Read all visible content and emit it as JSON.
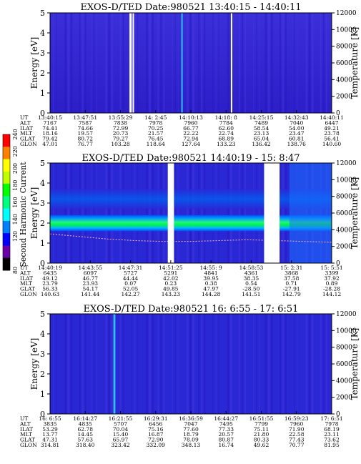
{
  "chart_data": [
    {
      "type": "heatmap",
      "title": "EXOS-D/TED   Date:980521   13:40:15 - 14:40:11",
      "ylabel": "Energy [eV]",
      "y2label": "Temperature [K]",
      "ylim": [
        0,
        5
      ],
      "yticks": [
        0,
        1,
        2,
        3,
        4,
        5
      ],
      "y2lim": [
        0,
        12000
      ],
      "y2ticks": [
        0,
        2000,
        4000,
        6000,
        8000,
        10000,
        12000
      ],
      "gaps": [
        [
          0.282,
          0.29
        ],
        [
          0.293,
          0.298
        ],
        [
          0.642,
          0.647
        ]
      ],
      "streaks": [
        [
          0.466,
          0.471
        ]
      ],
      "grid": false,
      "table": {
        "labels": [
          "UT",
          "ALT",
          "ILAT",
          "MLT",
          "GLAT",
          "GLON"
        ],
        "columns": [
          [
            "13:40:15",
            "7167",
            "74.41",
            "18.16",
            "79.42",
            "47.01"
          ],
          [
            "13:47:51",
            "7587",
            "74.66",
            "19.57",
            "80.72",
            "76.77"
          ],
          [
            "13:55:29",
            "7838",
            "72.99",
            "20.73",
            "79.27",
            "103.28"
          ],
          [
            "14: 2:45",
            "7978",
            "70.25",
            "21.57",
            "76.45",
            "118.64"
          ],
          [
            "14:10:13",
            "7960",
            "66.77",
            "22.22",
            "72.94",
            "127.64"
          ],
          [
            "14:18: 8",
            "7784",
            "62.60",
            "22.74",
            "68.89",
            "133.23"
          ],
          [
            "14:25:15",
            "7489",
            "58.54",
            "23.13",
            "65.04",
            "136.42"
          ],
          [
            "14:32:43",
            "7040",
            "54.00",
            "23.47",
            "60.81",
            "138.76"
          ],
          [
            "14:40:11",
            "6447",
            "49.21",
            "23.78",
            "56.41",
            "140.60"
          ]
        ]
      }
    },
    {
      "type": "heatmap",
      "title": "EXOS-D/TED   Date:980521   14:40:19 - 15: 8:47",
      "ylabel": "Energy [eV]",
      "y2label": "Temperature [K]",
      "ylim": [
        0,
        5
      ],
      "yticks": [
        0,
        1,
        2,
        3,
        4,
        5
      ],
      "y2lim": [
        0,
        12000
      ],
      "y2ticks": [
        0,
        2000,
        4000,
        6000,
        8000,
        10000,
        12000
      ],
      "gaps": [
        [
          0.418,
          0.44
        ],
        [
          0.76,
          0.815
        ]
      ],
      "bands": [
        {
          "from": 1.6,
          "to": 2.4,
          "level": "high"
        },
        {
          "from": 2.7,
          "to": 3.7,
          "level": "medium"
        }
      ],
      "temperature_trace": {
        "x": [
          0,
          0.1,
          0.2,
          0.3,
          0.4,
          0.5,
          0.6,
          0.7,
          0.8,
          0.9,
          1
        ],
        "y": [
          3500,
          3200,
          2900,
          2700,
          2600,
          2600,
          2700,
          2800,
          2700,
          2600,
          2500
        ]
      },
      "grid": false,
      "table": {
        "labels": [
          "UT",
          "ALT",
          "ILAT",
          "MLT",
          "GLAT",
          "GLON"
        ],
        "columns": [
          [
            "14:40:19",
            "6435",
            "49.12",
            "23.79",
            "56.33",
            "140.63"
          ],
          [
            "14:43:55",
            "6097",
            "46.77",
            "23.93",
            "54.17",
            "141.44"
          ],
          [
            "14:47:31",
            "5727",
            "44.44",
            "0.07",
            "52.05",
            "142.27"
          ],
          [
            "14:51:25",
            "5291",
            "42.02",
            "0.23",
            "49.85",
            "143.23"
          ],
          [
            "14:55: 9",
            "4841",
            "39.95",
            "0.38",
            "47.97",
            "144.28"
          ],
          [
            "14:58:53",
            "4361",
            "38.35",
            "0.54",
            "-28.50",
            "141.51"
          ],
          [
            "15: 2:31",
            "3868",
            "37.58",
            "0.71",
            "-27.91",
            "142.79"
          ],
          [
            "15: 5:51",
            "3399",
            "37.92",
            "0.89",
            "-28.28",
            "144.12"
          ]
        ]
      },
      "colorbar": {
        "label": "Second Harmonic Current",
        "ticks": [
          80,
          120,
          140,
          160,
          180,
          200,
          220,
          240
        ],
        "colors": [
          "#000000",
          "#6a00a8",
          "#0000ff",
          "#0080ff",
          "#00ffff",
          "#00ff80",
          "#00ff00",
          "#c0ff00",
          "#ffff00",
          "#ff8000",
          "#ff0000"
        ]
      }
    },
    {
      "type": "heatmap",
      "title": "EXOS-D/TED   Date:980521   16: 6:55 - 17: 6:51",
      "ylabel": "Energy [eV]",
      "y2label": "Temperature [K]",
      "ylim": [
        0,
        5
      ],
      "yticks": [
        0,
        1,
        2,
        3,
        4,
        5
      ],
      "y2lim": [
        0,
        12000
      ],
      "y2ticks": [
        0,
        2000,
        4000,
        6000,
        8000,
        10000,
        12000
      ],
      "streaks": [
        [
          0.225,
          0.232
        ]
      ],
      "grid": false,
      "table": {
        "labels": [
          "UT",
          "ALT",
          "ILAT",
          "MLT",
          "GLAT",
          "GLON"
        ],
        "columns": [
          [
            "16: 6:55",
            "3835",
            "53.29",
            "13.77",
            "47.31",
            "314.81"
          ],
          [
            "16:14:27",
            "4835",
            "62.78",
            "14.45",
            "57.63",
            "318.40"
          ],
          [
            "16:21:55",
            "5707",
            "70.04",
            "15.40",
            "65.97",
            "323.42"
          ],
          [
            "16:29:31",
            "6456",
            "75.16",
            "16.87",
            "72.90",
            "332.09"
          ],
          [
            "16:36:59",
            "7047",
            "77.60",
            "18.79",
            "78.09",
            "348.13"
          ],
          [
            "16:44:27",
            "7495",
            "77.33",
            "20.57",
            "80.87",
            "16.74"
          ],
          [
            "16:51:55",
            "7799",
            "75.11",
            "21.80",
            "80.33",
            "49.62"
          ],
          [
            "16:59:23",
            "7960",
            "71.90",
            "22.58",
            "77.43",
            "70.77"
          ],
          [
            "17: 6:51",
            "7978",
            "68.19",
            "23.11",
            "73.62",
            "81.95"
          ]
        ]
      }
    }
  ]
}
